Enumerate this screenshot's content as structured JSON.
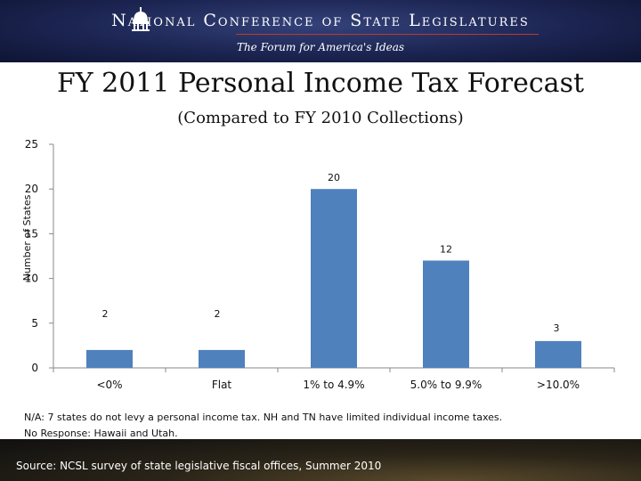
{
  "header": {
    "org_name": "National Conference of State Legislatures",
    "tagline": "The Forum for America's Ideas",
    "dome_icon": "capitol-dome-icon"
  },
  "slide": {
    "title": "FY 2011 Personal Income Tax Forecast",
    "subtitle": "(Compared to FY 2010 Collections)"
  },
  "chart_data": {
    "type": "bar",
    "categories": [
      "<0%",
      "Flat",
      "1% to 4.9%",
      "5.0% to 9.9%",
      ">10.0%"
    ],
    "values": [
      2,
      2,
      20,
      12,
      3
    ],
    "data_labels": [
      "2",
      "2",
      "20",
      "12",
      "3"
    ],
    "ylabel": "Number of States",
    "xlabel": "",
    "ylim": [
      0,
      25
    ],
    "yticks": [
      0,
      5,
      10,
      15,
      20,
      25
    ],
    "ytick_labels": [
      "0",
      "5",
      "10",
      "15",
      "20",
      "25"
    ],
    "grid": false,
    "legend": "none",
    "bar_color": "#4f81bd"
  },
  "notes": {
    "line1": "N/A: 7 states do not levy a personal income tax. NH and TN have limited individual income taxes.",
    "line2": "No Response: Hawaii and Utah."
  },
  "footer": {
    "source": "Source: NCSL survey of state legislative fiscal offices, Summer 2010"
  }
}
